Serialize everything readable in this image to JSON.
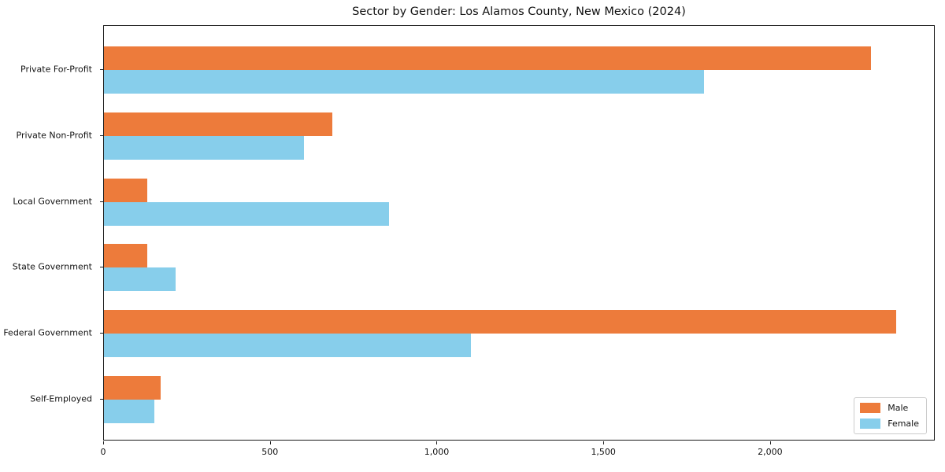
{
  "chart_data": {
    "type": "bar",
    "orientation": "horizontal",
    "title": "Sector by Gender: Los Alamos County, New Mexico (2024)",
    "categories": [
      "Private For-Profit",
      "Private Non-Profit",
      "Local Government",
      "State Government",
      "Federal Government",
      "Self-Employed"
    ],
    "series": [
      {
        "name": "Male",
        "color": "#ED7B3B",
        "values": [
          2300,
          685,
          130,
          130,
          2375,
          170
        ]
      },
      {
        "name": "Female",
        "color": "#87CEEB",
        "values": [
          1800,
          600,
          855,
          215,
          1100,
          150
        ]
      }
    ],
    "xlabel": "",
    "ylabel": "",
    "xlim": [
      0,
      2493.75
    ],
    "xticks": [
      0,
      500,
      1000,
      1500,
      2000
    ],
    "xtick_labels": [
      "0",
      "500",
      "1,000",
      "1,500",
      "2,000"
    ],
    "grid": false,
    "legend_position": "lower right"
  }
}
